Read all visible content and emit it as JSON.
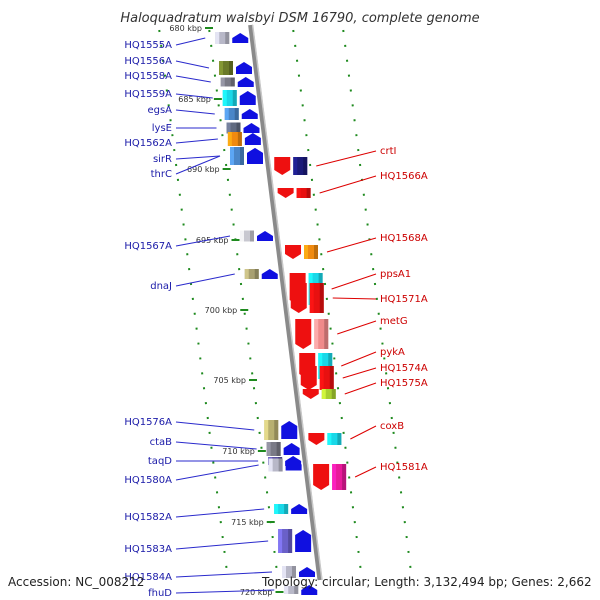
{
  "title": "Haloquadratum walsbyi DSM 16790, complete genome",
  "footer": {
    "accession": "Accession: NC_008212",
    "summary": "Topology: circular; Length: 3,132,494 bp; Genes: 2,662"
  },
  "colors": {
    "left_label": "#1a1aa8",
    "right_label": "#cc0000",
    "left_line": "#2a2acc",
    "right_line": "#dd0000",
    "backbone": "#8a8a8a",
    "tick": "#1e8a1e"
  },
  "ticks": [
    {
      "label": "680 kbp"
    },
    {
      "label": "685 kbp"
    },
    {
      "label": "690 kbp"
    },
    {
      "label": "695 kbp"
    },
    {
      "label": "700 kbp"
    },
    {
      "label": "705 kbp"
    },
    {
      "label": "710 kbp"
    },
    {
      "label": "715 kbp"
    },
    {
      "label": "720 kbp"
    }
  ],
  "genes_left": [
    {
      "label": "HQ1555A",
      "strand": "minus",
      "color": "#b8b8c8"
    },
    {
      "label": "HQ1556A",
      "strand": "minus",
      "color": "#6b7a2a"
    },
    {
      "label": "HQ1558A",
      "strand": "minus",
      "color": "#7a7a86"
    },
    {
      "label": "HQ1559A",
      "strand": "minus",
      "color": "#19d8e8"
    },
    {
      "label": "egsA",
      "strand": "minus",
      "color": "#4a86c8"
    },
    {
      "label": "lysE",
      "strand": "minus",
      "color": "#606a80"
    },
    {
      "label": "HQ1562A",
      "strand": "minus",
      "color": "#f08a10"
    },
    {
      "label": "sirR",
      "strand": "minus",
      "color": "#3a70b8"
    },
    {
      "label": "thrC",
      "strand": "minus",
      "color": "#4a86c8"
    },
    {
      "label": "HQ1567A",
      "strand": "minus",
      "color": "#c8c8d0"
    },
    {
      "label": "dnaJ",
      "strand": "minus",
      "color": "#a8a070"
    },
    {
      "label": "HQ1576A",
      "strand": "minus",
      "color": "#b8b070"
    },
    {
      "label": "ctaB",
      "strand": "minus",
      "color": "#7a7a86"
    },
    {
      "label": "taqD",
      "strand": "minus",
      "color": "#5a50a0"
    },
    {
      "label": "HQ1580A",
      "strand": "minus",
      "color": "#b8b8c8"
    },
    {
      "label": "HQ1582A",
      "strand": "minus",
      "color": "#19d8e8"
    },
    {
      "label": "HQ1583A",
      "strand": "minus",
      "color": "#6a60c8"
    },
    {
      "label": "HQ1584A",
      "strand": "minus",
      "color": "#b8b8c8"
    },
    {
      "label": "fhuD",
      "strand": "minus",
      "color": "#b8b8c8"
    }
  ],
  "genes_right": [
    {
      "label": "crtI",
      "strand": "plus",
      "color": "#1a1a78"
    },
    {
      "label": "HQ1566A",
      "strand": "plus",
      "color": "#e81010"
    },
    {
      "label": "HQ1568A",
      "strand": "plus",
      "color": "#f08a10"
    },
    {
      "label": "ppsA1",
      "strand": "plus",
      "color": "#19d8e8"
    },
    {
      "label": "HQ1571A",
      "strand": "plus",
      "color": "#e81010"
    },
    {
      "label": "metG",
      "strand": "plus",
      "color": "#f08a8a"
    },
    {
      "label": "pykA",
      "strand": "plus",
      "color": "#19d8e8"
    },
    {
      "label": "HQ1574A",
      "strand": "plus",
      "color": "#e81010"
    },
    {
      "label": "HQ1575A",
      "strand": "plus",
      "color": "#a8d030"
    },
    {
      "label": "coxB",
      "strand": "plus",
      "color": "#19d8e8"
    },
    {
      "label": "HQ1581A",
      "strand": "plus",
      "color": "#e81a9a"
    }
  ]
}
